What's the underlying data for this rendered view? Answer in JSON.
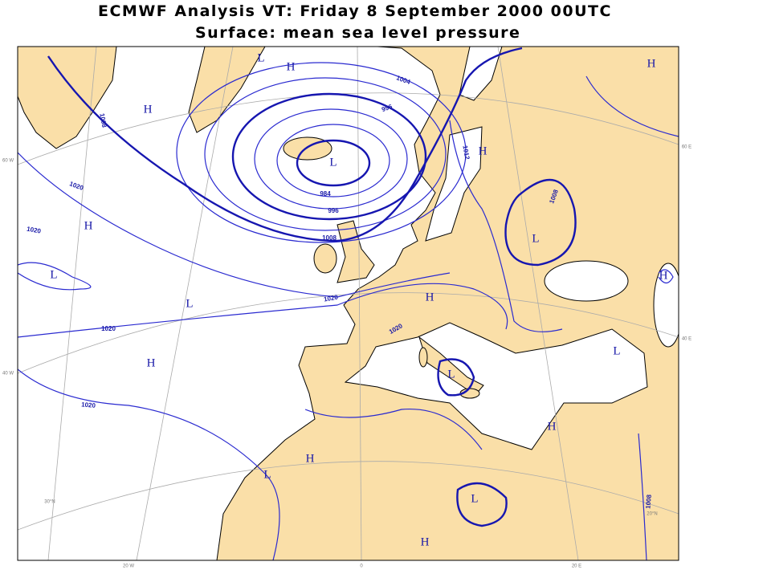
{
  "header": {
    "title": "ECMWF  Analysis VT: Friday 8 September 2000 00UTC",
    "subtitle": "Surface:  mean sea level pressure"
  },
  "map": {
    "pressure_centers": [
      "L",
      "H",
      "H",
      "L",
      "H",
      "H",
      "L",
      "L",
      "H",
      "H",
      "L",
      "H",
      "H",
      "L",
      "L",
      "H",
      "H",
      "L",
      "L",
      "H"
    ],
    "isobar_labels": [
      "1008",
      "1004",
      "996",
      "984",
      "996",
      "1008",
      "1020",
      "1020",
      "1020",
      "1020",
      "1020",
      "1020",
      "1012",
      "1008",
      "1008"
    ],
    "graticule_labels": [
      "60 W",
      "40 W",
      "20 W",
      "0",
      "20 E",
      "30°N",
      "20°N",
      "60 E",
      "40 E"
    ]
  }
}
